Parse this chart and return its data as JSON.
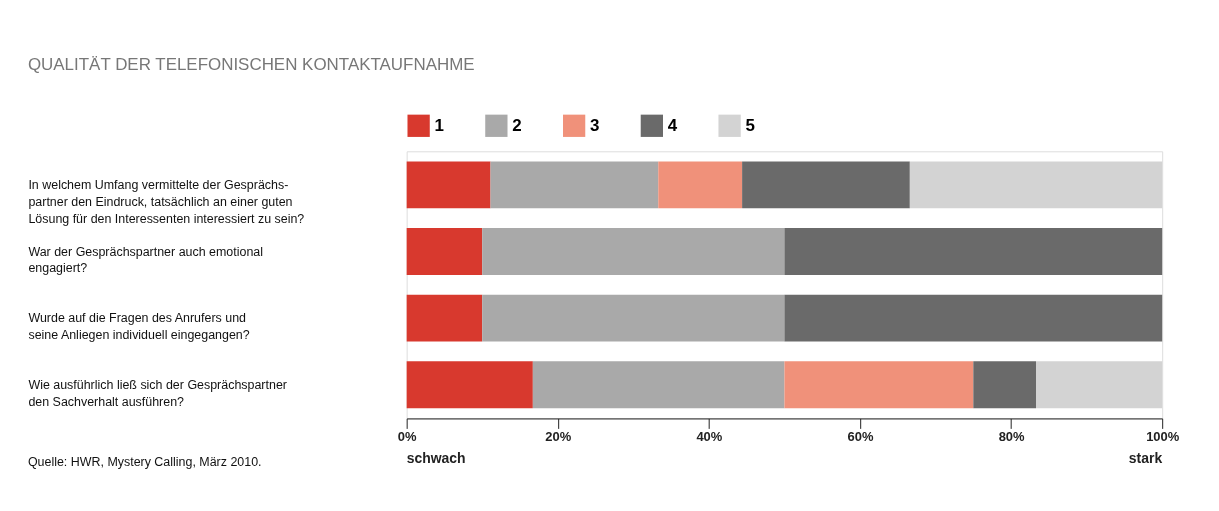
{
  "chart_data": {
    "type": "bar",
    "orientation": "horizontal",
    "stacked": true,
    "title": "QUALITÄT DER TELEFONISCHEN KONTAKTAUFNAHME",
    "categories": [
      "In welchem Umfang vermittelte der Gesprächs-\npartner den Eindruck, tatsächlich an einer guten\nLösung für den Interessenten interessiert zu sein?",
      "War der Gesprächspartner auch emotional\nengagiert?",
      "Wurde auf die Fragen des Anrufers und\nseine Anliegen individuell eingegangen?",
      "Wie ausführlich ließ sich der Gesprächspartner\nden Sachverhalt ausführen?"
    ],
    "series": [
      {
        "name": "1",
        "color": "#d8392e",
        "values": [
          11.1,
          10,
          10,
          16.7
        ]
      },
      {
        "name": "2",
        "color": "#a9a9a9",
        "values": [
          22.2,
          40,
          40,
          33.3
        ]
      },
      {
        "name": "3",
        "color": "#f0917a",
        "values": [
          11.1,
          null,
          null,
          25
        ]
      },
      {
        "name": "4",
        "color": "#6a6a6a",
        "values": [
          22.2,
          50,
          50,
          8.3
        ]
      },
      {
        "name": "5",
        "color": "#d3d3d3",
        "values": [
          33.4,
          null,
          null,
          16.7
        ]
      }
    ],
    "xlim": [
      0,
      100
    ],
    "xticks": [
      {
        "value": 0,
        "label": "0%"
      },
      {
        "value": 20,
        "label": "20%"
      },
      {
        "value": 40,
        "label": "40%"
      },
      {
        "value": 60,
        "label": "60%"
      },
      {
        "value": 80,
        "label": "80%"
      },
      {
        "value": 100,
        "label": "100%"
      }
    ],
    "legend": "top",
    "grid": false,
    "annotations": [
      "schwach",
      "stark",
      "Quelle: HWR, Mystery Calling, März 2010."
    ]
  }
}
